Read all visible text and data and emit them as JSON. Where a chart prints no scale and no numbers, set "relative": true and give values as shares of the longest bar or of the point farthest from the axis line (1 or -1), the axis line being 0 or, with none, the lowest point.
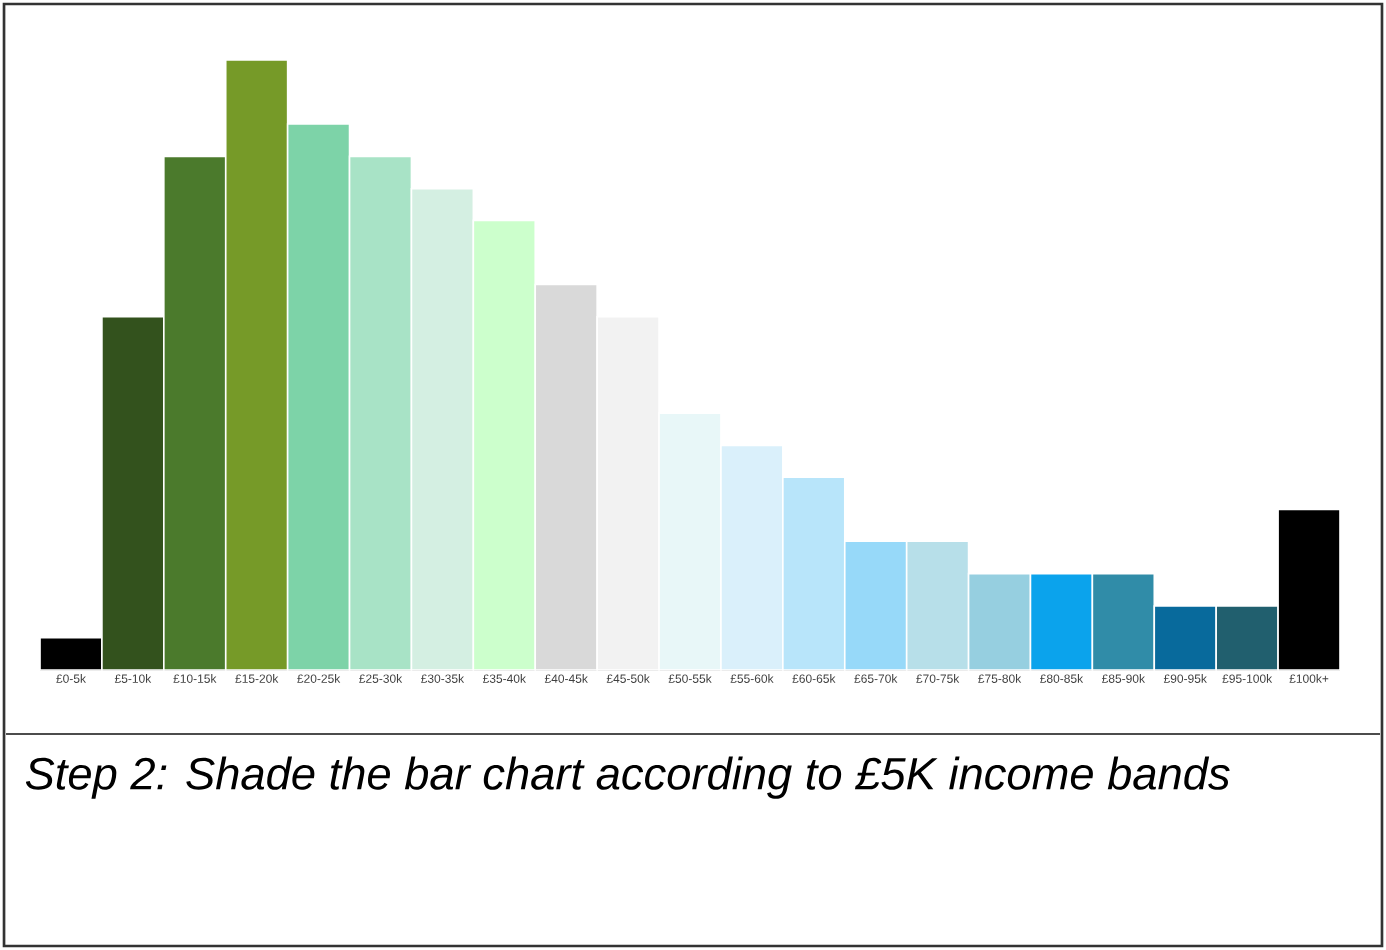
{
  "chart_data": {
    "type": "bar",
    "relative": true,
    "categories": [
      "£0-5k",
      "£5-10k",
      "£10-15k",
      "£15-20k",
      "£20-25k",
      "£25-30k",
      "£30-35k",
      "£35-40k",
      "£40-45k",
      "£45-50k",
      "£50-55k",
      "£55-60k",
      "£60-65k",
      "£65-70k",
      "£70-75k",
      "£75-80k",
      "£80-85k",
      "£85-90k",
      "£90-95k",
      "£95-100k",
      "£100k+"
    ],
    "values": [
      0.053,
      0.579,
      0.842,
      1,
      0.895,
      0.842,
      0.789,
      0.737,
      0.632,
      0.579,
      0.421,
      0.368,
      0.316,
      0.211,
      0.211,
      0.158,
      0.158,
      0.158,
      0.105,
      0.105,
      0.263
    ],
    "colors": [
      "#000000",
      "#33521d",
      "#4b7a2c",
      "#769a28",
      "#7dd3a8",
      "#a8e3c6",
      "#d4efe2",
      "#ccffcc",
      "#d9d9d9",
      "#f2f2f2",
      "#e8f7f8",
      "#daf0fb",
      "#b8e5fa",
      "#97d9f9",
      "#b7dfe9",
      "#96cfe0",
      "#0ba3ec",
      "#308ca8",
      "#086a9c",
      "#215f6e",
      "#000000"
    ],
    "annotations": [
      "Step 2: Shade the bar chart according to £5K income bands"
    ]
  }
}
